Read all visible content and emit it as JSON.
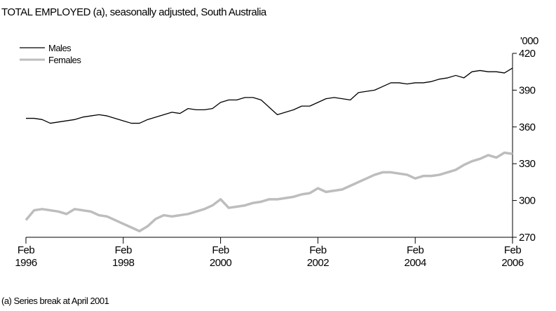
{
  "chart_data": {
    "type": "line",
    "title": "TOTAL EMPLOYED (a), seasonally adjusted, South Australia",
    "y_unit": "'000",
    "footnote": "(a) Series break at April 2001",
    "x": [
      "1996-02",
      "1996-04",
      "1996-06",
      "1996-08",
      "1996-10",
      "1996-12",
      "1997-02",
      "1997-04",
      "1997-06",
      "1997-08",
      "1997-10",
      "1997-12",
      "1998-02",
      "1998-04",
      "1998-06",
      "1998-08",
      "1998-10",
      "1998-12",
      "1999-02",
      "1999-04",
      "1999-06",
      "1999-08",
      "1999-10",
      "1999-12",
      "2000-02",
      "2000-04",
      "2000-06",
      "2000-08",
      "2000-10",
      "2000-12",
      "2001-02",
      "2001-04",
      "2001-06",
      "2001-08",
      "2001-10",
      "2001-12",
      "2002-02",
      "2002-04",
      "2002-06",
      "2002-08",
      "2002-10",
      "2002-12",
      "2003-02",
      "2003-04",
      "2003-06",
      "2003-08",
      "2003-10",
      "2003-12",
      "2004-02",
      "2004-04",
      "2004-06",
      "2004-08",
      "2004-10",
      "2004-12",
      "2005-02",
      "2005-04",
      "2005-06",
      "2005-08",
      "2005-10",
      "2005-12",
      "2006-02"
    ],
    "series": [
      {
        "name": "Males",
        "color": "#000000",
        "values": [
          367,
          367,
          366,
          363,
          364,
          365,
          366,
          368,
          369,
          370,
          369,
          367,
          365,
          363,
          363,
          366,
          368,
          370,
          372,
          371,
          375,
          374,
          374,
          375,
          380,
          382,
          382,
          384,
          384,
          382,
          376,
          370,
          372,
          374,
          377,
          377,
          380,
          383,
          384,
          383,
          382,
          388,
          389,
          390,
          393,
          396,
          396,
          395,
          396,
          396,
          397,
          399,
          400,
          402,
          400,
          405,
          406,
          405,
          405,
          404,
          408
        ]
      },
      {
        "name": "Females",
        "color": "#bdbdbd",
        "values": [
          284,
          292,
          293,
          292,
          291,
          289,
          293,
          292,
          291,
          288,
          287,
          284,
          281,
          278,
          275,
          279,
          285,
          288,
          287,
          288,
          289,
          291,
          293,
          296,
          301,
          294,
          295,
          296,
          298,
          299,
          301,
          301,
          302,
          303,
          305,
          306,
          310,
          307,
          308,
          309,
          312,
          315,
          318,
          321,
          323,
          323,
          322,
          321,
          318,
          320,
          320,
          321,
          323,
          325,
          329,
          332,
          334,
          337,
          335,
          339,
          338
        ]
      }
    ],
    "ylim": [
      270,
      420
    ],
    "yticks": [
      270,
      300,
      330,
      360,
      390,
      420
    ],
    "xlim": [
      "1996-02",
      "2006-02"
    ],
    "xticks": [
      {
        "value": "1996-02",
        "label": [
          "Feb",
          "1996"
        ]
      },
      {
        "value": "1998-02",
        "label": [
          "Feb",
          "1998"
        ]
      },
      {
        "value": "2000-02",
        "label": [
          "Feb",
          "2000"
        ]
      },
      {
        "value": "2002-02",
        "label": [
          "Feb",
          "2002"
        ]
      },
      {
        "value": "2004-02",
        "label": [
          "Feb",
          "2004"
        ]
      },
      {
        "value": "2006-02",
        "label": [
          "Feb",
          "2006"
        ]
      }
    ],
    "legend": "top-left"
  }
}
